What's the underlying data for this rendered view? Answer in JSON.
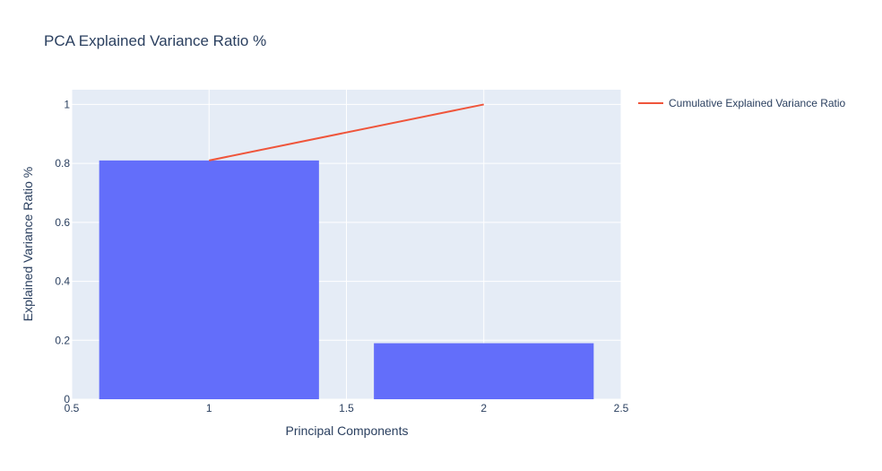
{
  "chart_data": {
    "type": "bar",
    "title": "PCA Explained Variance Ratio %",
    "xlabel": "Principal Components",
    "ylabel": "Explained Variance Ratio %",
    "xlim": [
      0.5,
      2.5
    ],
    "ylim": [
      0,
      1.05
    ],
    "xticks": [
      "0.5",
      "1",
      "1.5",
      "2",
      "2.5"
    ],
    "yticks": [
      "0",
      "0.2",
      "0.4",
      "0.6",
      "0.8",
      "1"
    ],
    "grid": true,
    "legend_position": "top-right",
    "bars": {
      "x": [
        1,
        2
      ],
      "values": [
        0.81,
        0.19
      ],
      "width": 0.8,
      "color": "#636efa"
    },
    "series": [
      {
        "name": "Cumulative Explained Variance Ratio",
        "type": "line",
        "x": [
          1,
          2
        ],
        "values": [
          0.81,
          1.0
        ],
        "color": "#ef553b"
      }
    ],
    "plot_background": "#e5ecf6"
  }
}
